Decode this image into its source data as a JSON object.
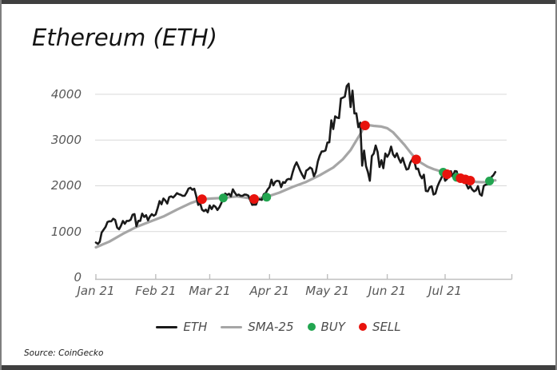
{
  "page": {
    "title": "Ethereum (ETH)",
    "source": "Source: CoinGecko"
  },
  "legend": {
    "eth_label": "ETH",
    "sma_label": "SMA-25",
    "buy_label": "BUY",
    "sell_label": "SELL"
  },
  "colors": {
    "eth_line": "#1a1a1a",
    "sma_line": "#a6a6a6",
    "buy": "#22a550",
    "sell": "#e8130d",
    "grid": "#d9d9d9",
    "axis": "#bfbfbf",
    "tick_text": "#595959",
    "frame_bar": "#3f3f3f"
  },
  "chart_data": {
    "type": "line",
    "title": "Ethereum (ETH)",
    "xlabel": "",
    "ylabel": "",
    "grid": "horizontal",
    "legend_position": "bottom",
    "ylim": [
      0,
      4400
    ],
    "y_tick_labels": [
      "4000",
      "3000",
      "2000",
      "1000",
      "0"
    ],
    "y_tick_values": [
      4000,
      3000,
      2000,
      1000,
      0
    ],
    "x_tick_labels": [
      "Jan 21",
      "Feb 21",
      "Mar 21",
      "Apr 21",
      "May 21",
      "Jun 21",
      "Jul 21"
    ],
    "x_tick_days": [
      0,
      31,
      59,
      90,
      120,
      151,
      181
    ],
    "x_start_date": "2021-01-01",
    "series": [
      {
        "name": "ETH",
        "sampling": "daily, day 0 = Jan 1 2021",
        "values": [
          760,
          731,
          775,
          978,
          1041,
          1100,
          1208,
          1225,
          1224,
          1281,
          1254,
          1087,
          1050,
          1129,
          1232,
          1171,
          1233,
          1232,
          1258,
          1368,
          1382,
          1117,
          1235,
          1233,
          1392,
          1318,
          1358,
          1246,
          1330,
          1380,
          1345,
          1374,
          1512,
          1667,
          1596,
          1722,
          1679,
          1612,
          1752,
          1770,
          1743,
          1785,
          1840,
          1816,
          1805,
          1780,
          1781,
          1850,
          1937,
          1956,
          1914,
          1935,
          1778,
          1583,
          1625,
          1480,
          1446,
          1478,
          1420,
          1571,
          1492,
          1570,
          1540,
          1470,
          1530,
          1620,
          1730,
          1830,
          1800,
          1826,
          1770,
          1924,
          1850,
          1790,
          1810,
          1780,
          1780,
          1810,
          1805,
          1785,
          1680,
          1585,
          1590,
          1587,
          1700,
          1705,
          1690,
          1816,
          1840,
          1920,
          1970,
          2135,
          2010,
          2090,
          2110,
          2100,
          1970,
          2080,
          2065,
          2135,
          2150,
          2140,
          2300,
          2430,
          2514,
          2420,
          2320,
          2235,
          2160,
          2330,
          2360,
          2400,
          2370,
          2210,
          2300,
          2530,
          2660,
          2750,
          2755,
          2772,
          2945,
          2950,
          3430,
          3240,
          3520,
          3490,
          3480,
          3910,
          3925,
          3950,
          4180,
          4230,
          3720,
          4080,
          3580,
          3585,
          3280,
          3380,
          2440,
          2770,
          2430,
          2300,
          2110,
          2650,
          2705,
          2880,
          2740,
          2410,
          2560,
          2385,
          2705,
          2634,
          2706,
          2857,
          2688,
          2626,
          2711,
          2590,
          2506,
          2610,
          2470,
          2354,
          2370,
          2508,
          2580,
          2543,
          2368,
          2373,
          2234,
          2164,
          2243,
          1886,
          1880,
          1968,
          1990,
          1810,
          1830,
          1980,
          2084,
          2165,
          2275,
          2110,
          2150,
          2226,
          2320,
          2198,
          2322,
          2316,
          2116,
          2146,
          2111,
          2140,
          2031,
          1940,
          1994,
          1919,
          1877,
          1900,
          1993,
          1818,
          1786,
          1996,
          2025,
          2033,
          2126,
          2190,
          2233,
          2300
        ]
      },
      {
        "name": "SMA-25",
        "points": [
          [
            0,
            655
          ],
          [
            7,
            780
          ],
          [
            14,
            950
          ],
          [
            21,
            1100
          ],
          [
            28,
            1215
          ],
          [
            35,
            1330
          ],
          [
            42,
            1480
          ],
          [
            49,
            1620
          ],
          [
            55,
            1707
          ],
          [
            60,
            1722
          ],
          [
            66,
            1734
          ],
          [
            73,
            1768
          ],
          [
            77,
            1745
          ],
          [
            82,
            1712
          ],
          [
            88,
            1752
          ],
          [
            95,
            1850
          ],
          [
            102,
            1975
          ],
          [
            109,
            2085
          ],
          [
            116,
            2230
          ],
          [
            123,
            2400
          ],
          [
            128,
            2580
          ],
          [
            132,
            2780
          ],
          [
            135,
            2990
          ],
          [
            137,
            3130
          ],
          [
            139,
            3290
          ],
          [
            141,
            3330
          ],
          [
            144,
            3310
          ],
          [
            148,
            3295
          ],
          [
            151,
            3260
          ],
          [
            154,
            3170
          ],
          [
            157,
            3030
          ],
          [
            160,
            2890
          ],
          [
            163,
            2730
          ],
          [
            166,
            2576
          ],
          [
            169,
            2490
          ],
          [
            172,
            2415
          ],
          [
            175,
            2365
          ],
          [
            178,
            2325
          ],
          [
            180,
            2297
          ],
          [
            182,
            2253
          ],
          [
            185,
            2215
          ],
          [
            189,
            2166
          ],
          [
            192,
            2138
          ],
          [
            194,
            2113
          ],
          [
            197,
            2086
          ],
          [
            200,
            2078
          ],
          [
            202,
            2082
          ],
          [
            204,
            2105
          ],
          [
            207,
            2118
          ]
        ]
      }
    ],
    "signals": {
      "buy": [
        {
          "day": 66,
          "value": 1734
        },
        {
          "day": 88.5,
          "value": 1752
        },
        {
          "day": 180,
          "value": 2297
        },
        {
          "day": 187,
          "value": 2185
        },
        {
          "day": 204,
          "value": 2105
        }
      ],
      "sell": [
        {
          "day": 55,
          "value": 1707
        },
        {
          "day": 82,
          "value": 1712
        },
        {
          "day": 139.5,
          "value": 3318
        },
        {
          "day": 166,
          "value": 2576
        },
        {
          "day": 182,
          "value": 2253
        },
        {
          "day": 189,
          "value": 2166
        },
        {
          "day": 191.5,
          "value": 2140
        },
        {
          "day": 194,
          "value": 2113
        }
      ]
    }
  }
}
